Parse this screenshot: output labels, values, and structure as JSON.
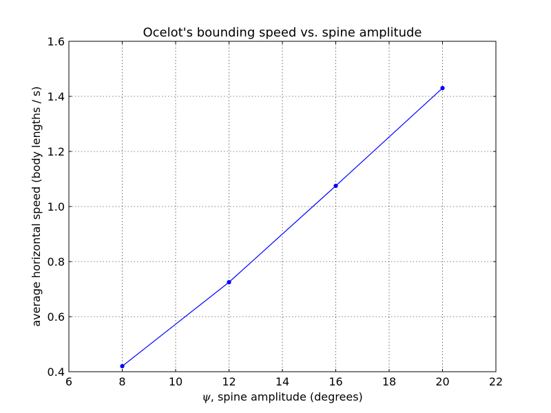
{
  "chart_data": {
    "type": "line",
    "title": "Ocelot's bounding speed vs. spine amplitude",
    "xlabel_symbol": "ψ",
    "xlabel": ", spine amplitude (degrees)",
    "ylabel": "average horizontal speed (body lengths / s)",
    "xlim": [
      6,
      22
    ],
    "ylim": [
      0.4,
      1.6
    ],
    "xticks": [
      6,
      8,
      10,
      12,
      14,
      16,
      18,
      20,
      22
    ],
    "xtick_labels": [
      "6",
      "8",
      "10",
      "12",
      "14",
      "16",
      "18",
      "20",
      "22"
    ],
    "yticks": [
      0.4,
      0.6,
      0.8,
      1.0,
      1.2,
      1.4,
      1.6
    ],
    "ytick_labels": [
      "0.4",
      "0.6",
      "0.8",
      "1.0",
      "1.2",
      "1.4",
      "1.6"
    ],
    "grid": true,
    "series": [
      {
        "x": [
          8,
          12,
          16,
          20
        ],
        "y": [
          0.42,
          0.725,
          1.075,
          1.43
        ],
        "color": "#0000ff"
      }
    ]
  }
}
